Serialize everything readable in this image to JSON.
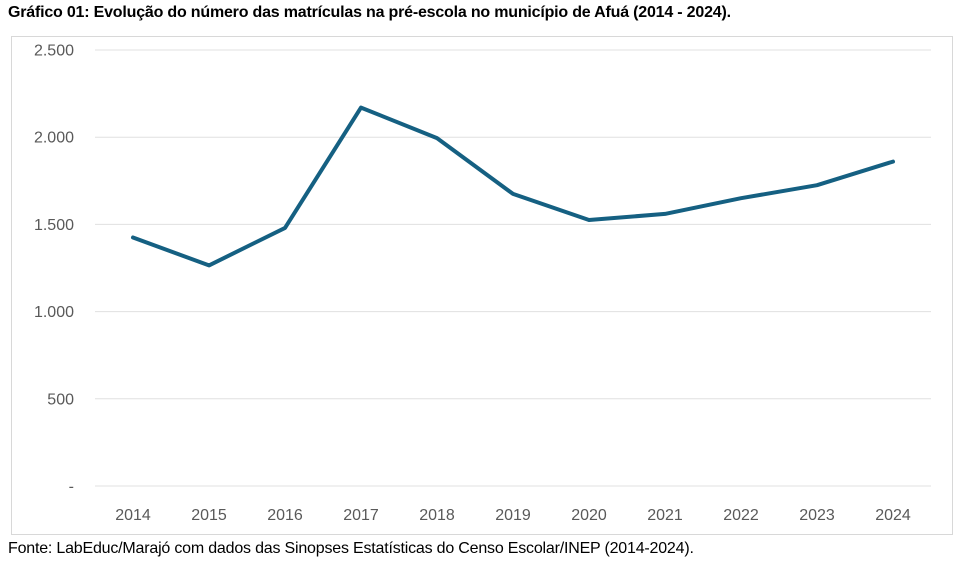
{
  "page": {
    "title": "Gráfico 01: Evolução do número das matrículas na pré-escola no município de Afuá (2014 - 2024).",
    "source_note": "Fonte: LabEduc/Marajó com dados das Sinopses Estatísticas do Censo Escolar/INEP (2014-2024)."
  },
  "chart_data": {
    "type": "line",
    "title": "Gráfico 01: Evolução do número das matrículas na pré-escola no município de Afuá (2014 - 2024).",
    "categories": [
      "2014",
      "2015",
      "2016",
      "2017",
      "2018",
      "2019",
      "2020",
      "2021",
      "2022",
      "2023",
      "2024"
    ],
    "series": [
      {
        "name": "Matrículas na pré-escola",
        "values": [
          1425,
          1265,
          1480,
          2170,
          1995,
          1675,
          1525,
          1560,
          1650,
          1725,
          1860
        ]
      }
    ],
    "xlabel": "",
    "ylabel": "",
    "ylim": [
      0,
      2500
    ],
    "y_tick_interval": 500,
    "y_tick_labels": [
      "-",
      "500",
      "1.000",
      "1.500",
      "2.000",
      "2.500"
    ],
    "grid": true,
    "legend": false,
    "colors": {
      "line": "#156082",
      "gridline": "#E0E0E0",
      "tick_label": "#595959",
      "frame_border": "#D8D8D8",
      "background": "#FFFFFF"
    }
  }
}
